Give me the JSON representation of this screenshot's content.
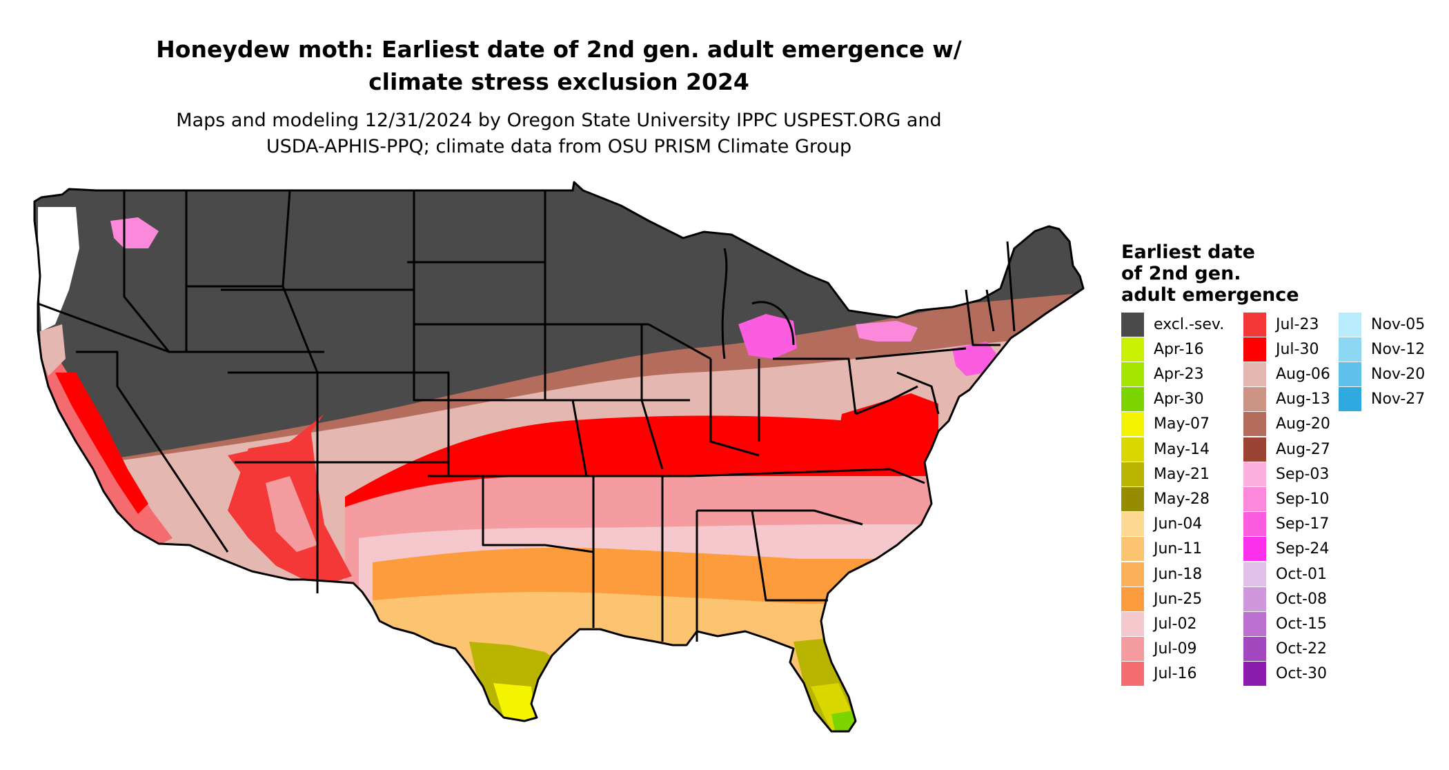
{
  "title": {
    "line1": "Honeydew moth: Earliest date of 2nd gen. adult emergence w/",
    "line2": "climate stress exclusion 2024"
  },
  "subtitle": {
    "line1": "Maps and modeling 12/31/2024 by Oregon State University IPPC USPEST.ORG and",
    "line2": "USDA-APHIS-PPQ; climate data from OSU PRISM Climate Group"
  },
  "legend": {
    "title_lines": [
      "Earliest date",
      "of 2nd gen.",
      "adult emergence"
    ],
    "columns": [
      [
        {
          "label": "excl.-sev.",
          "color": "#4a4a4a"
        },
        {
          "label": "Apr-16",
          "color": "#c8f000"
        },
        {
          "label": "Apr-23",
          "color": "#a4e600"
        },
        {
          "label": "Apr-30",
          "color": "#7cd400"
        },
        {
          "label": "May-07",
          "color": "#f4f400"
        },
        {
          "label": "May-14",
          "color": "#d8d800"
        },
        {
          "label": "May-21",
          "color": "#b8b400"
        },
        {
          "label": "May-28",
          "color": "#968c00"
        },
        {
          "label": "Jun-04",
          "color": "#fcd890"
        },
        {
          "label": "Jun-11",
          "color": "#fcc470"
        },
        {
          "label": "Jun-18",
          "color": "#fcb058"
        },
        {
          "label": "Jun-25",
          "color": "#fc9c3c"
        },
        {
          "label": "Jul-02",
          "color": "#f4c8cc"
        },
        {
          "label": "Jul-09",
          "color": "#f49ca0"
        },
        {
          "label": "Jul-16",
          "color": "#f46c70"
        }
      ],
      [
        {
          "label": "Jul-23",
          "color": "#f43838"
        },
        {
          "label": "Jul-30",
          "color": "#ff0000"
        },
        {
          "label": "Aug-06",
          "color": "#e4b8b0"
        },
        {
          "label": "Aug-13",
          "color": "#cc9484"
        },
        {
          "label": "Aug-20",
          "color": "#b46c5c"
        },
        {
          "label": "Aug-27",
          "color": "#9c4434"
        },
        {
          "label": "Sep-03",
          "color": "#fcb0e0"
        },
        {
          "label": "Sep-10",
          "color": "#fc88dc"
        },
        {
          "label": "Sep-17",
          "color": "#fc5ce0"
        },
        {
          "label": "Sep-24",
          "color": "#fc30ec"
        },
        {
          "label": "Oct-01",
          "color": "#e0c0e8"
        },
        {
          "label": "Oct-08",
          "color": "#d098dc"
        },
        {
          "label": "Oct-15",
          "color": "#bc70d0"
        },
        {
          "label": "Oct-22",
          "color": "#a448c0"
        },
        {
          "label": "Oct-30",
          "color": "#8c1cb0"
        }
      ],
      [
        {
          "label": "Nov-05",
          "color": "#b8ecfc"
        },
        {
          "label": "Nov-12",
          "color": "#8cd8f4"
        },
        {
          "label": "Nov-20",
          "color": "#60c0ec"
        },
        {
          "label": "Nov-27",
          "color": "#30a8e0"
        }
      ]
    ]
  }
}
